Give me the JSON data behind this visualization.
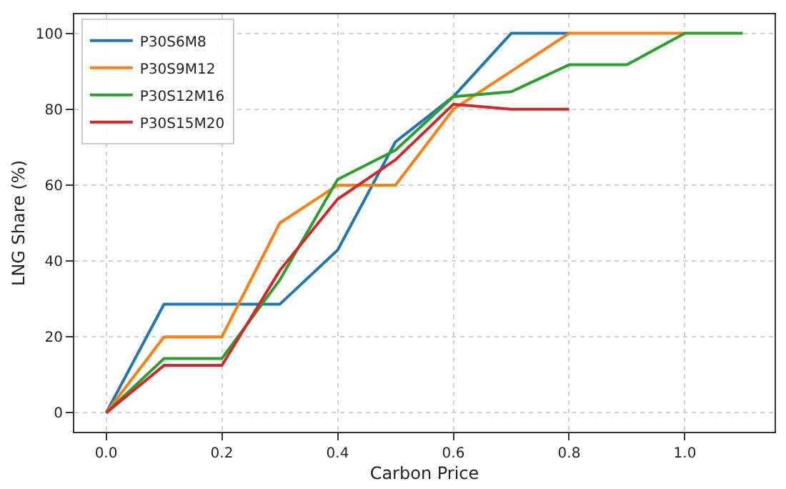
{
  "chart_data": {
    "type": "line",
    "xlabel": "Carbon Price",
    "ylabel": "LNG Share (%)",
    "series": [
      {
        "name": "P30S6M8",
        "color": "#1f77b4",
        "x": [
          0,
          0.1,
          0.2,
          0.3,
          0.4,
          0.5,
          0.6,
          0.7,
          0.8
        ],
        "values": [
          0,
          28.6,
          28.6,
          28.6,
          42.9,
          71.4,
          83.3,
          100,
          100
        ]
      },
      {
        "name": "P30S9M12",
        "color": "#ff7f0e",
        "x": [
          0,
          0.1,
          0.2,
          0.3,
          0.4,
          0.5,
          0.6,
          0.7,
          0.8,
          0.9,
          1.0
        ],
        "values": [
          0,
          20,
          20,
          50,
          60,
          60,
          80,
          90,
          100,
          100,
          100
        ]
      },
      {
        "name": "P30S12M16",
        "color": "#2ca02c",
        "x": [
          0,
          0.1,
          0.2,
          0.3,
          0.4,
          0.5,
          0.6,
          0.7,
          0.8,
          0.9,
          1.0,
          1.1
        ],
        "values": [
          0,
          14.3,
          14.3,
          35,
          61.5,
          69.2,
          83.3,
          84.6,
          91.7,
          91.7,
          100,
          100
        ]
      },
      {
        "name": "P30S15M20",
        "color": "#d62728",
        "x": [
          0,
          0.1,
          0.2,
          0.3,
          0.4,
          0.5,
          0.6,
          0.7,
          0.8
        ],
        "values": [
          0,
          12.5,
          12.5,
          37.5,
          56.3,
          66.7,
          81.3,
          80,
          80
        ]
      }
    ],
    "xlim": [
      -0.055,
      1.155
    ],
    "xticks": [
      {
        "value": 0,
        "label": "0.0"
      },
      0.2,
      0.4,
      0.6,
      0.8,
      {
        "value": 1,
        "label": "1.0"
      }
    ],
    "ylim": [
      -5,
      105
    ],
    "yticks": [
      0,
      20,
      40,
      60,
      80,
      100
    ],
    "grid": true,
    "legend": "top left",
    "marker": "none",
    "line_style": "solid"
  }
}
